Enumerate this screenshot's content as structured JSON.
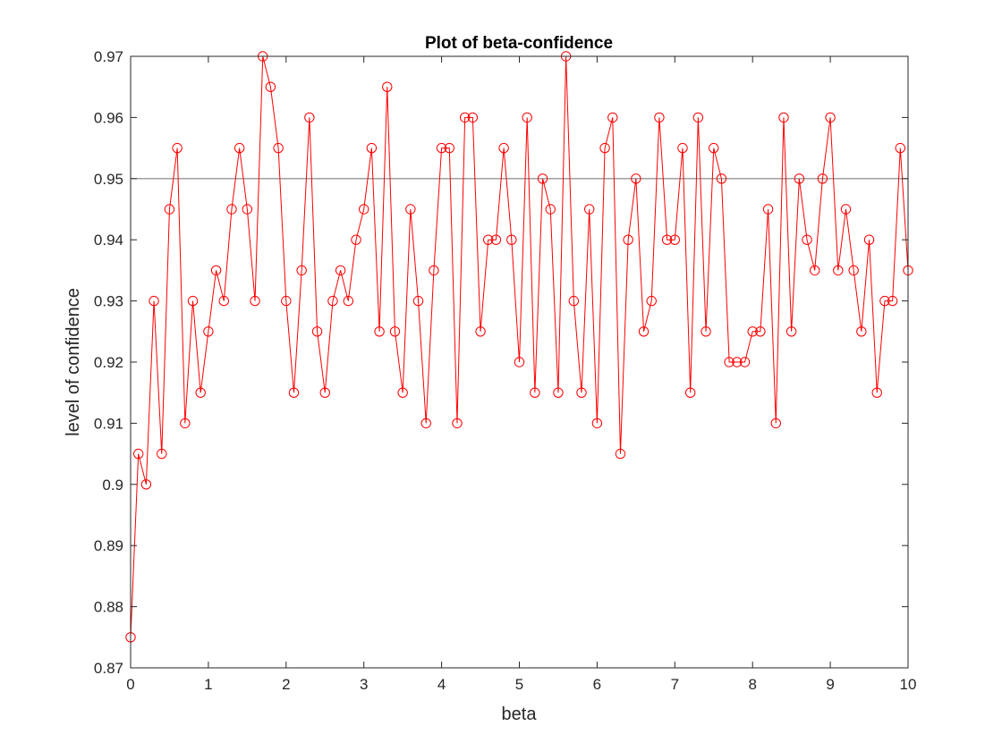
{
  "chart_data": {
    "type": "line",
    "title": "Plot of beta-confidence",
    "xlabel": "beta",
    "ylabel": "level of confidence",
    "xlim": [
      0,
      10
    ],
    "ylim": [
      0.87,
      0.97
    ],
    "xticks": [
      0,
      1,
      2,
      3,
      4,
      5,
      6,
      7,
      8,
      9,
      10
    ],
    "xtick_labels": [
      "0",
      "1",
      "2",
      "3",
      "4",
      "5",
      "6",
      "7",
      "8",
      "9",
      "10"
    ],
    "yticks": [
      0.87,
      0.88,
      0.89,
      0.9,
      0.91,
      0.92,
      0.93,
      0.94,
      0.95,
      0.96,
      0.97
    ],
    "ytick_labels": [
      "0.87",
      "0.88",
      "0.89",
      "0.9",
      "0.91",
      "0.92",
      "0.93",
      "0.94",
      "0.95",
      "0.96",
      "0.97"
    ],
    "grid": false,
    "reference_line": {
      "y": 0.95,
      "color": "#7f7f7f"
    },
    "series": [
      {
        "color": "#ff0000",
        "marker": "circle",
        "x": [
          0,
          0.1,
          0.2,
          0.3,
          0.4,
          0.5,
          0.6,
          0.7,
          0.8,
          0.9,
          1.0,
          1.1,
          1.2,
          1.3,
          1.4,
          1.5,
          1.6,
          1.7,
          1.8,
          1.9,
          2.0,
          2.1,
          2.2,
          2.3,
          2.4,
          2.5,
          2.6,
          2.7,
          2.8,
          2.9,
          3.0,
          3.1,
          3.2,
          3.3,
          3.4,
          3.5,
          3.6,
          3.7,
          3.8,
          3.9,
          4.0,
          4.1,
          4.2,
          4.3,
          4.4,
          4.5,
          4.6,
          4.7,
          4.8,
          4.9,
          5.0,
          5.1,
          5.2,
          5.3,
          5.4,
          5.5,
          5.6,
          5.7,
          5.8,
          5.9,
          6.0,
          6.1,
          6.2,
          6.3,
          6.4,
          6.5,
          6.6,
          6.7,
          6.8,
          6.9,
          7.0,
          7.1,
          7.2,
          7.3,
          7.4,
          7.5,
          7.6,
          7.7,
          7.8,
          7.9,
          8.0,
          8.1,
          8.2,
          8.3,
          8.4,
          8.5,
          8.6,
          8.7,
          8.8,
          8.9,
          9.0,
          9.1,
          9.2,
          9.3,
          9.4,
          9.5,
          9.6,
          9.7,
          9.8,
          9.9,
          10.0
        ],
        "y": [
          0.875,
          0.905,
          0.9,
          0.93,
          0.905,
          0.945,
          0.955,
          0.91,
          0.93,
          0.915,
          0.925,
          0.935,
          0.93,
          0.945,
          0.955,
          0.945,
          0.93,
          0.97,
          0.965,
          0.955,
          0.93,
          0.915,
          0.935,
          0.96,
          0.925,
          0.915,
          0.93,
          0.935,
          0.93,
          0.94,
          0.945,
          0.955,
          0.925,
          0.965,
          0.925,
          0.915,
          0.945,
          0.93,
          0.91,
          0.935,
          0.955,
          0.955,
          0.91,
          0.96,
          0.96,
          0.925,
          0.94,
          0.94,
          0.955,
          0.94,
          0.92,
          0.96,
          0.915,
          0.95,
          0.945,
          0.915,
          0.97,
          0.93,
          0.915,
          0.945,
          0.91,
          0.955,
          0.96,
          0.905,
          0.94,
          0.95,
          0.925,
          0.93,
          0.96,
          0.94,
          0.94,
          0.955,
          0.915,
          0.96,
          0.925,
          0.955,
          0.95,
          0.92,
          0.92,
          0.92,
          0.925,
          0.925,
          0.945,
          0.91,
          0.96,
          0.925,
          0.95,
          0.94,
          0.935,
          0.95,
          0.96,
          0.935,
          0.945,
          0.935,
          0.925,
          0.94,
          0.915,
          0.93,
          0.93,
          0.955,
          0.935
        ]
      }
    ]
  }
}
